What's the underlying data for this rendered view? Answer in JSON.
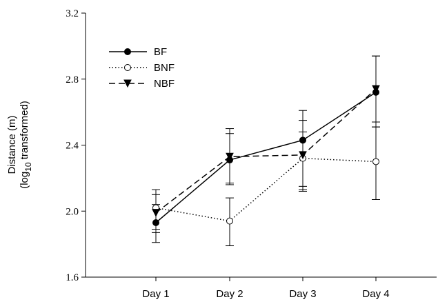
{
  "chart_data": {
    "type": "line",
    "categories": [
      "Day 1",
      "Day 2",
      "Day 3",
      "Day 4"
    ],
    "ylabel_line1": "Distance (m)",
    "ylabel_line2_prefix": "(log",
    "ylabel_line2_sub": "10",
    "ylabel_line2_suffix": " transformed)",
    "ylim": [
      1.6,
      3.2
    ],
    "yticks": [
      "1.6",
      "2.0",
      "2.4",
      "2.8",
      "3.2"
    ],
    "legend_position": "top-left",
    "series": [
      {
        "name": "BF",
        "marker": "filled-circle",
        "line": "solid",
        "values": [
          1.93,
          2.31,
          2.43,
          2.72
        ],
        "err_low": [
          1.81,
          2.16,
          2.12,
          2.51
        ],
        "err_high": [
          2.04,
          2.47,
          2.55,
          2.94
        ]
      },
      {
        "name": "BNF",
        "marker": "open-circle",
        "line": "dotted",
        "values": [
          2.02,
          1.94,
          2.32,
          2.3
        ],
        "err_low": [
          1.89,
          1.79,
          2.15,
          2.07
        ],
        "err_high": [
          2.13,
          2.08,
          2.48,
          2.51
        ]
      },
      {
        "name": "NBF",
        "marker": "filled-triangle-down",
        "line": "dashed",
        "values": [
          1.99,
          2.33,
          2.34,
          2.74
        ],
        "err_low": [
          1.87,
          2.17,
          2.13,
          2.54
        ],
        "err_high": [
          2.1,
          2.5,
          2.61,
          2.94
        ]
      }
    ]
  }
}
